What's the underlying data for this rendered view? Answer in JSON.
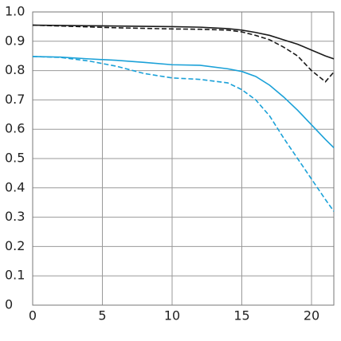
{
  "chart_data": {
    "type": "line",
    "x": [
      0,
      2,
      4,
      6,
      8,
      10,
      12,
      14,
      15,
      16,
      17,
      18,
      19,
      20,
      21,
      21.6
    ],
    "series": [
      {
        "color": "#1a1a1a",
        "dash": false,
        "values": [
          0.955,
          0.954,
          0.953,
          0.952,
          0.951,
          0.95,
          0.948,
          0.943,
          0.938,
          0.93,
          0.92,
          0.905,
          0.89,
          0.87,
          0.85,
          0.84
        ]
      },
      {
        "color": "#1a1a1a",
        "dash": true,
        "values": [
          0.955,
          0.952,
          0.949,
          0.946,
          0.944,
          0.942,
          0.941,
          0.938,
          0.932,
          0.92,
          0.905,
          0.88,
          0.85,
          0.8,
          0.762,
          0.795
        ]
      },
      {
        "color": "#1ba1d8",
        "dash": false,
        "values": [
          0.848,
          0.846,
          0.84,
          0.835,
          0.828,
          0.82,
          0.818,
          0.806,
          0.797,
          0.78,
          0.75,
          0.71,
          0.665,
          0.615,
          0.565,
          0.537
        ]
      },
      {
        "color": "#1ba1d8",
        "dash": true,
        "values": [
          0.848,
          0.845,
          0.833,
          0.815,
          0.79,
          0.775,
          0.77,
          0.758,
          0.735,
          0.7,
          0.645,
          0.57,
          0.5,
          0.43,
          0.36,
          0.32
        ]
      }
    ],
    "xlim": [
      0,
      21.6
    ],
    "xticks": [
      0,
      5,
      10,
      15,
      20
    ],
    "ylim": [
      0,
      1
    ],
    "yticks": [
      0,
      {
        "value": 0.1,
        "label": "0.1"
      },
      {
        "value": 0.2,
        "label": "0.2"
      },
      {
        "value": 0.3,
        "label": "0.3"
      },
      {
        "value": 0.4,
        "label": "0.4"
      },
      {
        "value": 0.5,
        "label": "0.5"
      },
      {
        "value": 0.6,
        "label": "0.6"
      },
      {
        "value": 0.7,
        "label": "0.7"
      },
      {
        "value": 0.8,
        "label": "0.8"
      },
      {
        "value": 0.9,
        "label": "0.9"
      },
      {
        "value": 1,
        "label": "1.0"
      }
    ],
    "grid": true
  }
}
